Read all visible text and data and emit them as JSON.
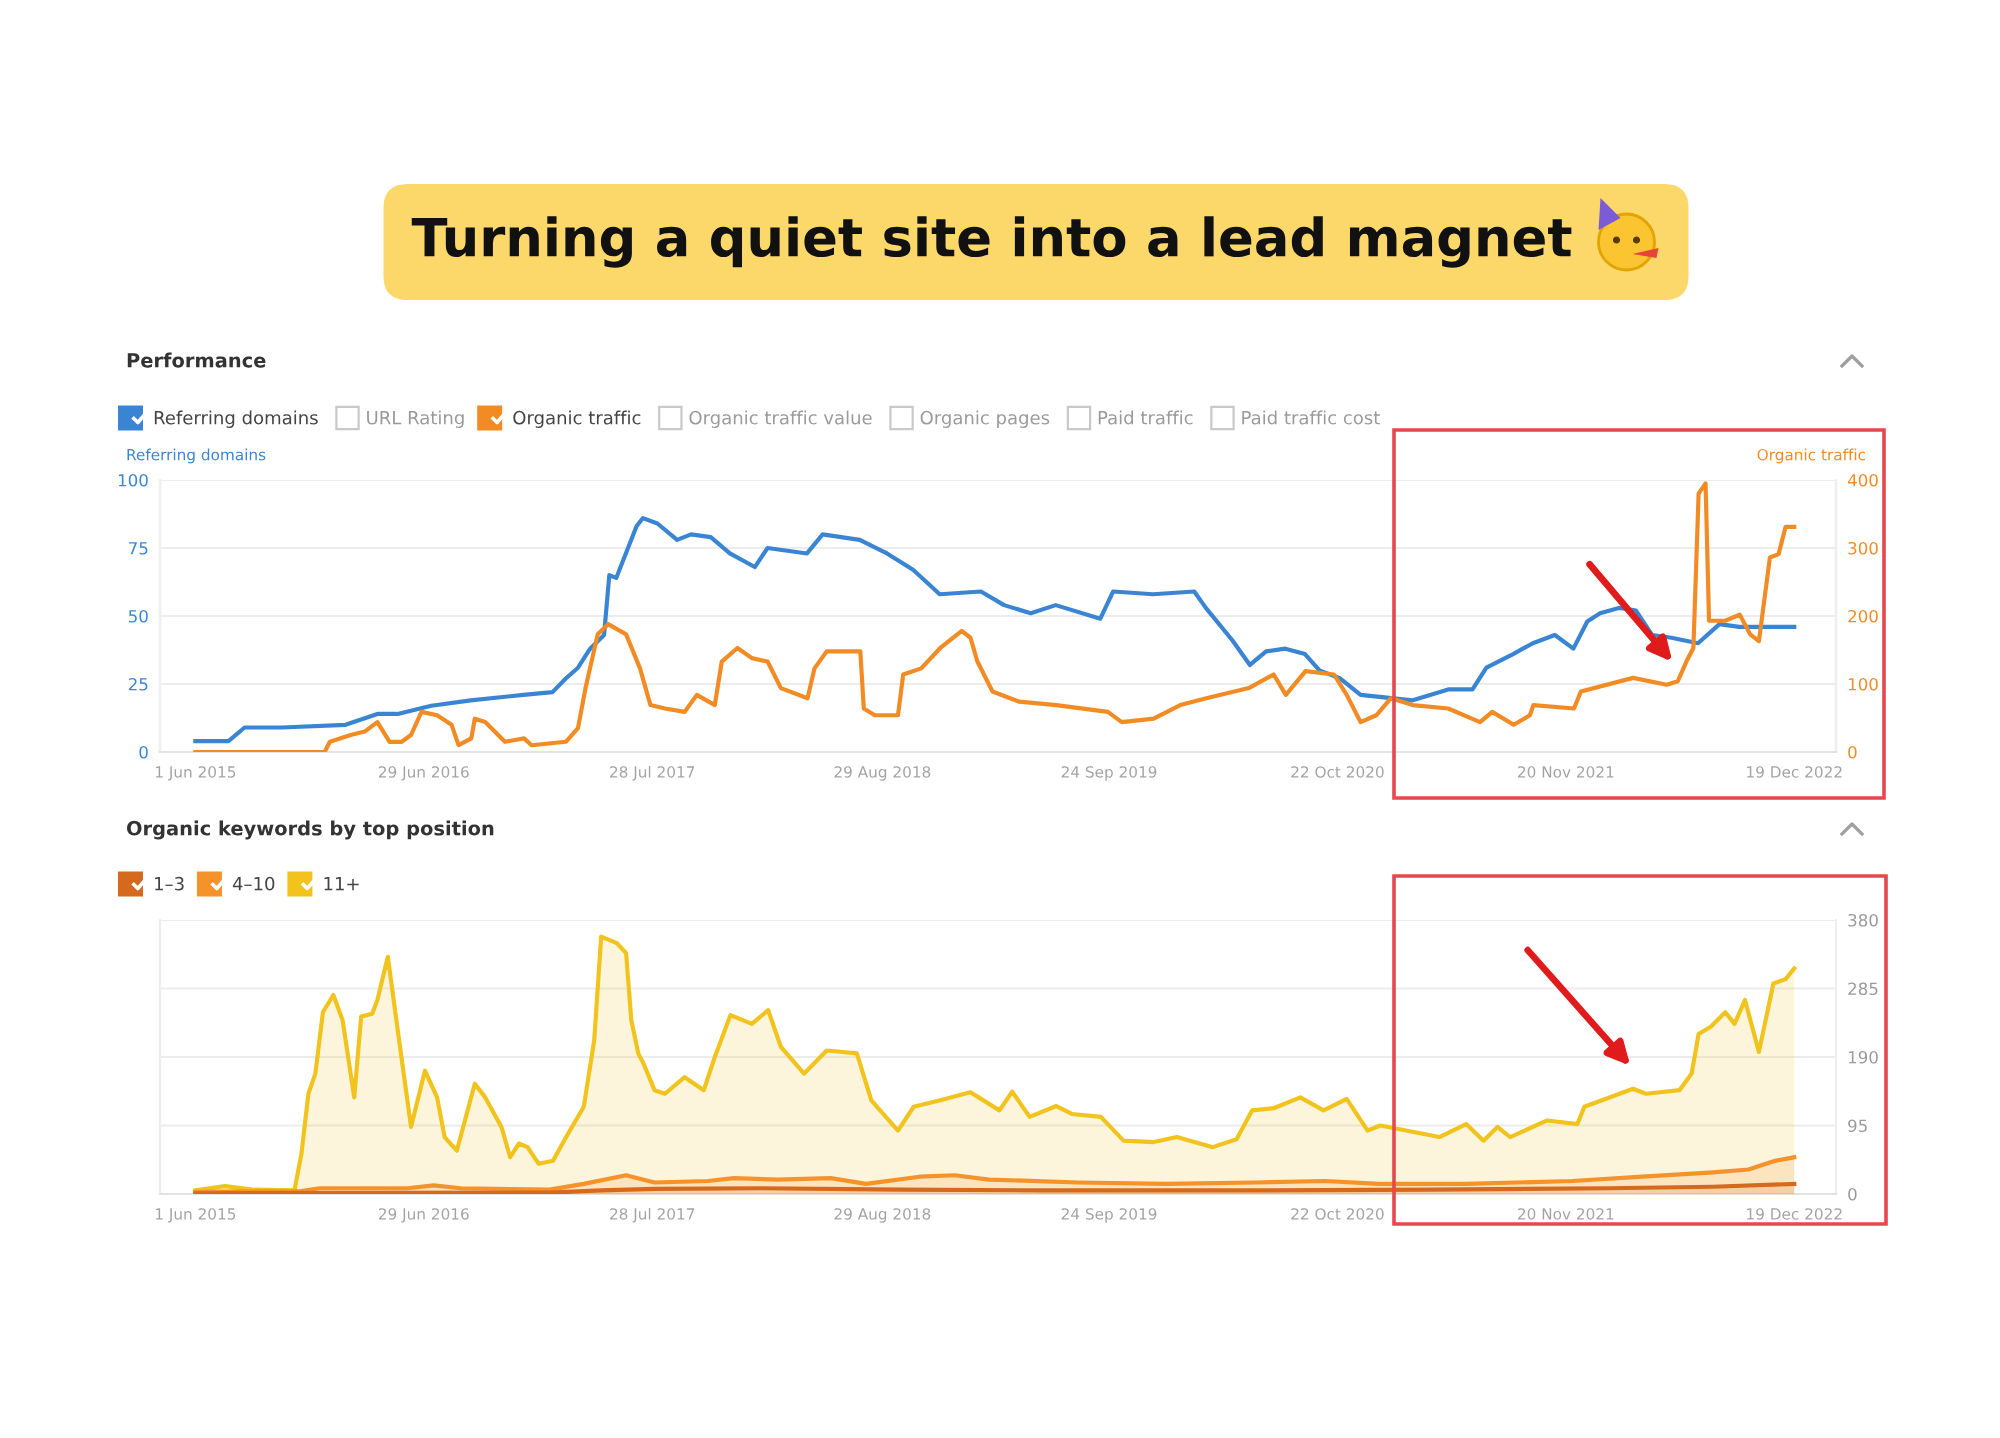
{
  "chart_data": [
    {
      "type": "line",
      "title": "Turning a quiet site into a lead magnet",
      "subtitle": "Performance",
      "ylabel": "Referring domains",
      "y2label": "Organic traffic",
      "xlim": [
        "2015-04-01",
        "2023-03-01"
      ],
      "xticks": [
        {
          "value": "2015-06-01",
          "label": "1 Jun 2015"
        },
        {
          "value": "2016-06-29",
          "label": "29 Jun 2016"
        },
        {
          "value": "2017-07-28",
          "label": "28 Jul 2017"
        },
        {
          "value": "2018-08-29",
          "label": "29 Aug 2018"
        },
        {
          "value": "2019-09-24",
          "label": "24 Sep 2019"
        },
        {
          "value": "2020-10-22",
          "label": "22 Oct 2020"
        },
        {
          "value": "2021-11-20",
          "label": "20 Nov 2021"
        },
        {
          "value": "2022-12-19",
          "label": "19 Dec 2022"
        }
      ],
      "ylim": [
        0,
        100
      ],
      "yticks": [
        0,
        25,
        50,
        75,
        100
      ],
      "y2lim": [
        0,
        400
      ],
      "y2ticks": [
        0,
        100,
        200,
        300,
        400
      ],
      "grid": "y",
      "legend": "top left",
      "series": [
        {
          "name": "Referring domains",
          "color": "#3a85d3",
          "x": [
            "2015-06-01",
            "2015-07-28",
            "2015-08-25",
            "2015-10-28",
            "2016-02-15",
            "2016-04-10",
            "2016-05-15",
            "2016-07-12",
            "2016-09-18",
            "2016-12-18",
            "2017-02-06",
            "2017-03-01",
            "2017-03-22",
            "2017-04-12",
            "2017-05-06",
            "2017-05-15",
            "2017-05-27",
            "2017-07-01",
            "2017-07-12",
            "2017-08-06",
            "2017-09-09",
            "2017-10-03",
            "2017-11-06",
            "2017-12-09",
            "2018-01-21",
            "2018-02-12",
            "2018-04-21",
            "2018-05-18",
            "2018-07-21",
            "2018-09-06",
            "2018-10-21",
            "2018-12-06",
            "2019-02-15",
            "2019-03-27",
            "2019-05-12",
            "2019-06-24",
            "2019-09-09",
            "2019-10-01",
            "2019-12-09",
            "2020-02-18",
            "2020-03-09",
            "2020-04-24",
            "2020-05-24",
            "2020-06-21",
            "2020-07-24",
            "2020-08-27",
            "2020-09-21",
            "2020-10-27",
            "2020-12-01",
            "2021-01-15",
            "2021-03-01",
            "2021-05-01",
            "2021-06-12",
            "2021-07-06",
            "2021-08-21",
            "2021-09-24",
            "2021-11-01",
            "2021-12-03",
            "2021-12-27",
            "2022-01-18",
            "2022-02-21",
            "2022-03-21",
            "2022-04-18",
            "2022-05-21",
            "2022-07-06",
            "2022-08-12",
            "2022-09-15",
            "2022-11-01",
            "2022-12-19"
          ],
          "values": [
            4,
            4,
            9,
            9,
            10,
            14,
            14,
            17,
            19,
            21,
            22,
            27,
            31,
            38,
            43,
            65,
            64,
            83,
            86,
            84,
            78,
            80,
            79,
            73,
            68,
            75,
            73,
            80,
            78,
            73,
            67,
            58,
            59,
            54,
            51,
            54,
            49,
            59,
            58,
            59,
            53,
            41,
            32,
            37,
            38,
            36,
            30,
            27,
            21,
            20,
            19,
            23,
            23,
            31,
            36,
            40,
            43,
            38,
            48,
            51,
            53,
            52,
            43,
            42,
            40,
            47,
            46,
            46,
            46
          ]
        },
        {
          "name": "URL Rating"
        },
        {
          "name": "Organic traffic",
          "color": "#f28b24",
          "axis": "y2",
          "x": [
            "2015-06-01",
            "2016-01-10",
            "2016-01-19",
            "2016-02-24",
            "2016-03-19",
            "2016-04-10",
            "2016-05-01",
            "2016-05-22",
            "2016-06-07",
            "2016-06-25",
            "2016-07-22",
            "2016-08-16",
            "2016-08-28",
            "2016-09-19",
            "2016-09-25",
            "2016-10-13",
            "2016-11-16",
            "2016-12-19",
            "2017-01-01",
            "2017-03-01",
            "2017-03-22",
            "2017-04-04",
            "2017-04-25",
            "2017-05-13",
            "2017-06-13",
            "2017-07-07",
            "2017-07-25",
            "2017-08-19",
            "2017-09-22",
            "2017-10-13",
            "2017-11-13",
            "2017-11-25",
            "2017-12-22",
            "2018-01-16",
            "2018-02-12",
            "2018-03-07",
            "2018-04-22",
            "2018-05-04",
            "2018-05-25",
            "2018-07-22",
            "2018-07-28",
            "2018-08-16",
            "2018-09-25",
            "2018-10-04",
            "2018-11-04",
            "2018-12-07",
            "2019-01-13",
            "2019-01-28",
            "2019-02-09",
            "2019-03-07",
            "2019-04-22",
            "2019-06-25",
            "2019-09-22",
            "2019-10-16",
            "2019-12-10",
            "2020-01-25",
            "2020-03-10",
            "2020-05-22",
            "2020-07-04",
            "2020-07-25",
            "2020-08-28",
            "2020-10-16",
            "2020-11-07",
            "2020-12-01",
            "2020-12-28",
            "2021-01-22",
            "2021-03-01",
            "2021-05-01",
            "2021-06-25",
            "2021-07-16",
            "2021-08-22",
            "2021-09-19",
            "2021-09-25",
            "2021-12-04",
            "2021-12-16",
            "2022-03-16",
            "2022-05-13",
            "2022-06-01",
            "2022-06-16",
            "2022-06-28",
            "2022-07-07",
            "2022-07-19",
            "2022-07-25",
            "2022-08-22",
            "2022-09-16",
            "2022-10-04",
            "2022-10-19",
            "2022-11-07",
            "2022-11-22",
            "2022-12-04",
            "2022-12-19"
          ],
          "values": [
            0,
            0,
            15,
            25,
            30,
            44,
            15,
            15,
            25,
            59,
            54,
            40,
            10,
            20,
            49,
            44,
            15,
            20,
            10,
            15,
            35,
            94,
            173,
            188,
            173,
            123,
            69,
            64,
            59,
            84,
            69,
            133,
            153,
            138,
            133,
            94,
            79,
            123,
            148,
            148,
            64,
            54,
            54,
            114,
            123,
            153,
            178,
            168,
            133,
            89,
            74,
            69,
            59,
            44,
            49,
            69,
            79,
            94,
            114,
            84,
            119,
            114,
            84,
            44,
            54,
            79,
            69,
            64,
            44,
            59,
            40,
            54,
            69,
            64,
            89,
            109,
            99,
            104,
            133,
            153,
            380,
            395,
            193,
            193,
            202,
            173,
            163,
            286,
            291,
            331,
            331
          ]
        },
        {
          "name": "Organic traffic value"
        },
        {
          "name": "Organic pages"
        },
        {
          "name": "Paid traffic"
        },
        {
          "name": "Paid traffic cost"
        }
      ]
    },
    {
      "type": "area",
      "title": "Organic keywords by top position",
      "xlim": [
        "2015-04-01",
        "2023-03-01"
      ],
      "xticks": [
        {
          "value": "2015-06-01",
          "label": "1 Jun 2015"
        },
        {
          "value": "2016-06-29",
          "label": "29 Jun 2016"
        },
        {
          "value": "2017-07-28",
          "label": "28 Jul 2017"
        },
        {
          "value": "2018-08-29",
          "label": "29 Aug 2018"
        },
        {
          "value": "2019-09-24",
          "label": "24 Sep 2019"
        },
        {
          "value": "2020-10-22",
          "label": "22 Oct 2020"
        },
        {
          "value": "2021-11-20",
          "label": "20 Nov 2021"
        },
        {
          "value": "2022-12-19",
          "label": "19 Dec 2022"
        }
      ],
      "ylim": [
        0,
        380
      ],
      "yticks": [
        0,
        95,
        190,
        285,
        380
      ],
      "grid": "y",
      "legend": "top left",
      "series": [
        {
          "name": "1–3",
          "color": "#d5691d",
          "x": [
            "2015-06-01",
            "2017-02-01",
            "2017-05-01",
            "2017-08-01",
            "2018-02-01",
            "2018-10-01",
            "2019-06-01",
            "2020-06-01",
            "2021-04-01",
            "2022-02-01",
            "2022-08-01",
            "2022-12-19"
          ],
          "values": [
            1,
            2,
            5,
            7,
            8,
            6,
            5,
            5,
            6,
            8,
            10,
            14
          ]
        },
        {
          "name": "4–10",
          "color": "#f5922a",
          "x": [
            "2015-06-01",
            "2015-12-01",
            "2016-01-01",
            "2016-06-01",
            "2016-07-16",
            "2016-09-01",
            "2017-02-01",
            "2017-04-01",
            "2017-06-13",
            "2017-08-01",
            "2017-11-01",
            "2017-12-16",
            "2018-03-01",
            "2018-06-01",
            "2018-08-01",
            "2018-11-01",
            "2019-01-01",
            "2019-03-01",
            "2019-08-01",
            "2020-01-01",
            "2020-06-01",
            "2020-10-01",
            "2021-01-01",
            "2021-06-01",
            "2021-12-01",
            "2022-04-01",
            "2022-08-01",
            "2022-10-01",
            "2022-11-16",
            "2022-12-19"
          ],
          "values": [
            3,
            4,
            8,
            8,
            12,
            8,
            6,
            14,
            26,
            16,
            18,
            22,
            20,
            22,
            14,
            24,
            26,
            20,
            16,
            14,
            16,
            18,
            14,
            14,
            18,
            24,
            30,
            34,
            46,
            51
          ]
        },
        {
          "name": "11+",
          "color": "#f2c31c",
          "x": [
            "2015-06-01",
            "2015-07-22",
            "2015-09-07",
            "2015-11-19",
            "2015-12-01",
            "2015-12-13",
            "2015-12-25",
            "2016-01-07",
            "2016-01-25",
            "2016-02-10",
            "2016-03-01",
            "2016-03-13",
            "2016-04-01",
            "2016-04-10",
            "2016-04-28",
            "2016-05-16",
            "2016-06-07",
            "2016-07-01",
            "2016-07-22",
            "2016-08-04",
            "2016-08-25",
            "2016-09-25",
            "2016-10-13",
            "2016-11-10",
            "2016-11-25",
            "2016-12-10",
            "2016-12-25",
            "2017-01-13",
            "2017-02-07",
            "2017-02-26",
            "2017-04-01",
            "2017-04-19",
            "2017-05-01",
            "2017-05-28",
            "2017-06-13",
            "2017-06-22",
            "2017-07-04",
            "2017-07-13",
            "2017-08-01",
            "2017-08-19",
            "2017-09-22",
            "2017-10-25",
            "2017-11-13",
            "2017-12-10",
            "2018-01-16",
            "2018-02-13",
            "2018-03-07",
            "2018-04-16",
            "2018-05-25",
            "2018-07-16",
            "2018-08-10",
            "2018-09-25",
            "2018-10-22",
            "2018-12-07",
            "2019-01-28",
            "2019-03-19",
            "2019-04-10",
            "2019-05-10",
            "2019-06-25",
            "2019-07-22",
            "2019-09-10",
            "2019-10-19",
            "2019-12-10",
            "2020-01-19",
            "2020-03-21",
            "2020-05-01",
            "2020-05-28",
            "2020-07-04",
            "2020-08-19",
            "2020-09-28",
            "2020-11-07",
            "2020-12-13",
            "2021-01-04",
            "2021-04-16",
            "2021-06-01",
            "2021-07-01",
            "2021-07-25",
            "2021-08-16",
            "2021-10-19",
            "2021-12-10",
            "2021-12-22",
            "2022-03-16",
            "2022-04-07",
            "2022-06-04",
            "2022-06-25",
            "2022-07-07",
            "2022-07-28",
            "2022-08-22",
            "2022-09-07",
            "2022-09-25",
            "2022-10-19",
            "2022-11-13",
            "2022-12-04",
            "2022-12-19"
          ],
          "values": [
            5,
            11,
            6,
            5,
            56,
            139,
            167,
            252,
            276,
            241,
            134,
            246,
            250,
            269,
            329,
            222,
            93,
            171,
            134,
            79,
            60,
            153,
            134,
            93,
            51,
            70,
            65,
            42,
            46,
            74,
            121,
            213,
            357,
            348,
            334,
            241,
            195,
            181,
            144,
            139,
            162,
            144,
            190,
            248,
            236,
            255,
            204,
            167,
            199,
            195,
            130,
            88,
            121,
            130,
            141,
            116,
            142,
            107,
            122,
            111,
            107,
            74,
            72,
            79,
            65,
            76,
            116,
            119,
            134,
            116,
            132,
            88,
            95,
            79,
            97,
            74,
            93,
            79,
            102,
            97,
            121,
            146,
            139,
            144,
            167,
            222,
            232,
            252,
            236,
            269,
            197,
            292,
            298,
            313
          ]
        }
      ]
    }
  ]
}
